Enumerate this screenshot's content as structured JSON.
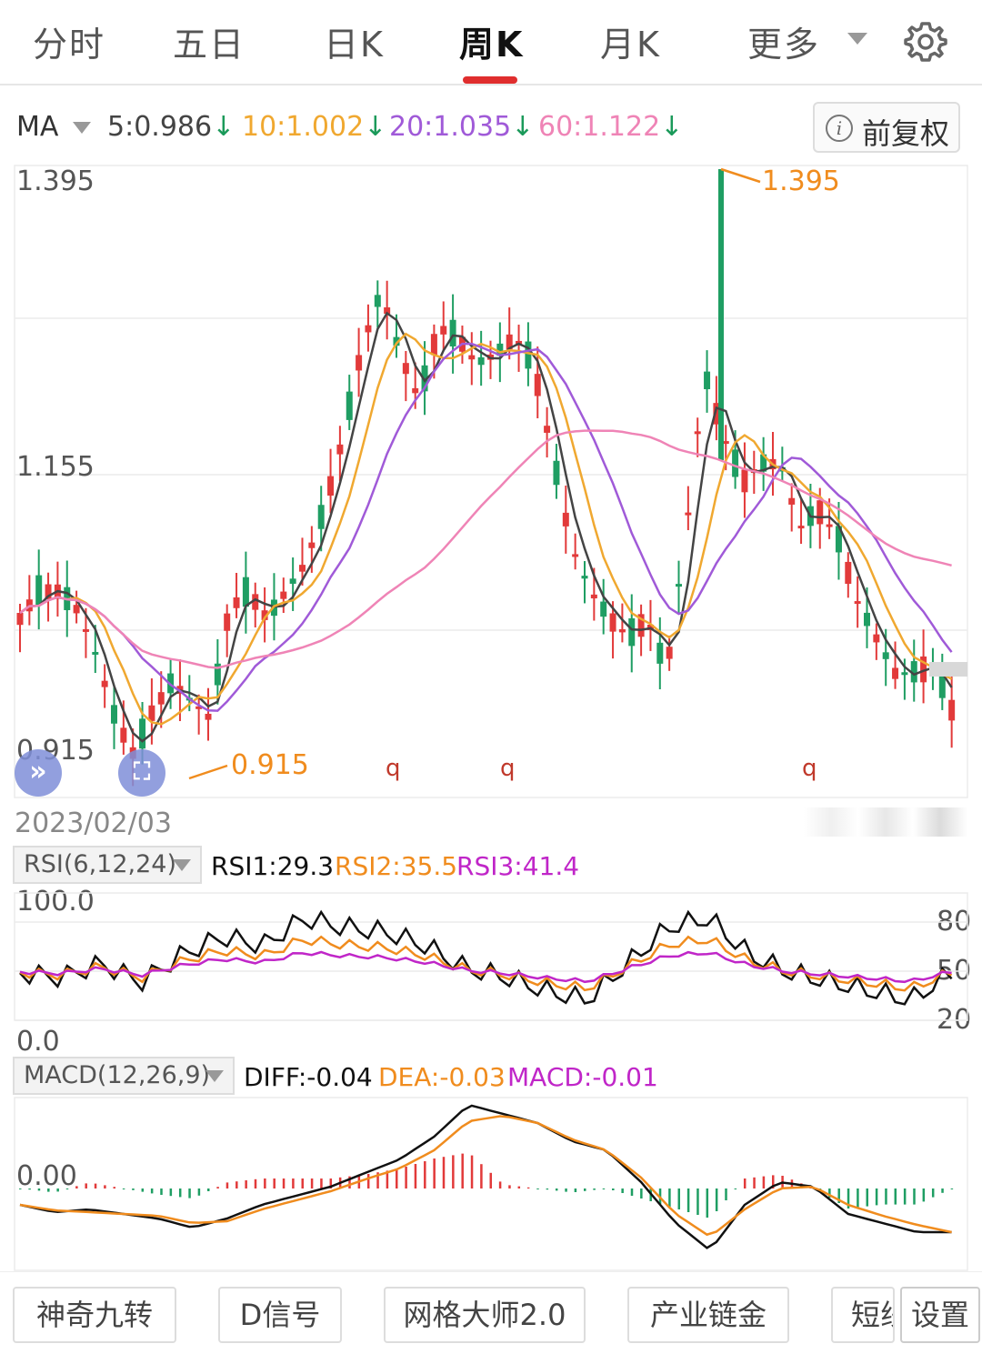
{
  "tabs": [
    {
      "label": "分时",
      "active": false
    },
    {
      "label": "五日",
      "active": false
    },
    {
      "label": "日K",
      "active": false
    },
    {
      "label": "周K",
      "active": true
    },
    {
      "label": "月K",
      "active": false
    },
    {
      "label": "更多",
      "active": false
    }
  ],
  "ma_legend": {
    "label": "MA",
    "items": [
      {
        "text": "5:0.986",
        "color": "#444444"
      },
      {
        "text": "10:1.002",
        "color": "#f0a830"
      },
      {
        "text": "20:1.035",
        "color": "#a05ad8"
      },
      {
        "text": "60:1.122",
        "color": "#ef84b6"
      }
    ],
    "arrow_color": "#1b9a5a",
    "adjust_label": "前复权"
  },
  "main_chart": {
    "y_labels": [
      "1.395",
      "1.155",
      "0.915"
    ],
    "date_label": "2023/02/03",
    "high_marker": "1.395",
    "low_marker": "0.915",
    "signal_label": "q",
    "up_color": "#e23a3a",
    "down_color": "#1f9e63"
  },
  "rsi": {
    "selector_label": "RSI(6,12,24)",
    "values": [
      {
        "text": "RSI1:29.3",
        "color": "#111111"
      },
      {
        "text": "RSI2:35.5",
        "color": "#f08c1e"
      },
      {
        "text": "RSI3:41.4",
        "color": "#c026c8"
      }
    ],
    "top_label": "100.0",
    "bottom_label": "0.0",
    "right_labels": [
      "80",
      "50",
      "20"
    ]
  },
  "macd": {
    "selector_label": "MACD(12,26,9)",
    "values": [
      {
        "text": "DIFF:-0.04",
        "color": "#111111"
      },
      {
        "text": "DEA:-0.03",
        "color": "#f08c1e"
      },
      {
        "text": "MACD:-0.01",
        "color": "#c026c8"
      }
    ],
    "zero_label": "0.00"
  },
  "toolbar": [
    {
      "label": "神奇九转"
    },
    {
      "label": "D信号"
    },
    {
      "label": "网格大师2.0"
    },
    {
      "label": "产业链金"
    },
    {
      "label": "短线"
    },
    {
      "label": "设置"
    }
  ]
}
